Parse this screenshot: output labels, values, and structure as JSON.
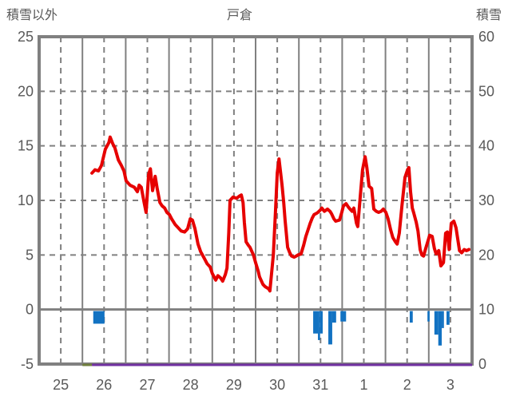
{
  "window": {
    "title_left": "積雪以外",
    "title_center": "戸倉",
    "title_right": "積雪"
  },
  "colors": {
    "frame_gray": "#808080",
    "grid_gray": "#808080",
    "text_gray": "#595959",
    "temperature_red": "#e60000",
    "bar_blue": "#1272c2",
    "snow_purple": "#7030a0",
    "pre_data_olive": "#6f7d3c",
    "background": "#ffffff"
  },
  "chart_data": {
    "type": "line",
    "title": "戸倉",
    "left_axis": {
      "label": "積雪以外",
      "min": -5,
      "max": 25,
      "ticks": [
        25,
        20,
        15,
        10,
        5,
        0,
        -5
      ]
    },
    "right_axis": {
      "label": "積雪",
      "min": 0,
      "max": 60,
      "ticks": [
        60,
        50,
        40,
        30,
        20,
        10,
        0
      ]
    },
    "x_axis": {
      "tick_labels": [
        "25",
        "26",
        "27",
        "28",
        "29",
        "30",
        "31",
        "1",
        "2",
        "3"
      ],
      "num_days": 10,
      "grid": "solid line per day boundary, dashed line per half day"
    },
    "grid": {
      "h_dashed_levels": [
        20,
        15,
        10,
        5
      ],
      "h_solid_zero_level": 0
    },
    "series": [
      {
        "name": "temperature-line",
        "kind": "line",
        "axis": "left",
        "color": "#e60000",
        "width": 4,
        "points": [
          [
            1.22,
            12.5
          ],
          [
            1.29,
            12.8
          ],
          [
            1.37,
            12.7
          ],
          [
            1.44,
            13.2
          ],
          [
            1.53,
            14.7
          ],
          [
            1.61,
            15.3
          ],
          [
            1.64,
            15.8
          ],
          [
            1.7,
            15.2
          ],
          [
            1.75,
            14.8
          ],
          [
            1.83,
            13.7
          ],
          [
            1.9,
            13.2
          ],
          [
            1.96,
            12.7
          ],
          [
            2.01,
            11.8
          ],
          [
            2.1,
            11.4
          ],
          [
            2.2,
            11.2
          ],
          [
            2.27,
            10.8
          ],
          [
            2.31,
            11.4
          ],
          [
            2.36,
            11.2
          ],
          [
            2.42,
            9.9
          ],
          [
            2.47,
            8.9
          ],
          [
            2.53,
            12.4
          ],
          [
            2.57,
            12.9
          ],
          [
            2.62,
            10.9
          ],
          [
            2.68,
            12.2
          ],
          [
            2.73,
            11.0
          ],
          [
            2.79,
            9.8
          ],
          [
            2.84,
            9.5
          ],
          [
            2.9,
            9.3
          ],
          [
            2.95,
            8.9
          ],
          [
            3.01,
            8.7
          ],
          [
            3.06,
            8.3
          ],
          [
            3.14,
            7.8
          ],
          [
            3.21,
            7.5
          ],
          [
            3.28,
            7.2
          ],
          [
            3.36,
            7.1
          ],
          [
            3.43,
            7.4
          ],
          [
            3.49,
            8.3
          ],
          [
            3.54,
            8.2
          ],
          [
            3.6,
            7.4
          ],
          [
            3.67,
            6.0
          ],
          [
            3.73,
            5.3
          ],
          [
            3.8,
            4.8
          ],
          [
            3.88,
            4.2
          ],
          [
            3.95,
            3.9
          ],
          [
            4.0,
            3.3
          ],
          [
            4.08,
            2.7
          ],
          [
            4.13,
            3.1
          ],
          [
            4.19,
            2.9
          ],
          [
            4.24,
            2.6
          ],
          [
            4.3,
            3.2
          ],
          [
            4.34,
            3.8
          ],
          [
            4.38,
            7.0
          ],
          [
            4.41,
            10.0
          ],
          [
            4.48,
            10.3
          ],
          [
            4.56,
            10.2
          ],
          [
            4.63,
            10.4
          ],
          [
            4.67,
            10.5
          ],
          [
            4.71,
            9.8
          ],
          [
            4.74,
            8.0
          ],
          [
            4.78,
            6.2
          ],
          [
            4.83,
            5.9
          ],
          [
            4.87,
            5.7
          ],
          [
            4.95,
            5.0
          ],
          [
            5.0,
            4.3
          ],
          [
            5.06,
            3.5
          ],
          [
            5.09,
            3.0
          ],
          [
            5.17,
            2.3
          ],
          [
            5.22,
            2.1
          ],
          [
            5.3,
            1.9
          ],
          [
            5.33,
            1.7
          ],
          [
            5.41,
            5.0
          ],
          [
            5.46,
            9.0
          ],
          [
            5.5,
            12.5
          ],
          [
            5.54,
            13.8
          ],
          [
            5.57,
            12.8
          ],
          [
            5.61,
            11.4
          ],
          [
            5.65,
            9.8
          ],
          [
            5.68,
            8.2
          ],
          [
            5.74,
            5.7
          ],
          [
            5.79,
            5.2
          ],
          [
            5.83,
            4.9
          ],
          [
            5.89,
            4.8
          ],
          [
            5.94,
            4.9
          ],
          [
            5.98,
            5.0
          ],
          [
            6.05,
            5.1
          ],
          [
            6.11,
            5.9
          ],
          [
            6.16,
            6.7
          ],
          [
            6.22,
            7.4
          ],
          [
            6.26,
            7.9
          ],
          [
            6.31,
            8.4
          ],
          [
            6.35,
            8.7
          ],
          [
            6.4,
            8.8
          ],
          [
            6.44,
            8.9
          ],
          [
            6.49,
            9.1
          ],
          [
            6.53,
            9.3
          ],
          [
            6.59,
            9.0
          ],
          [
            6.66,
            9.2
          ],
          [
            6.72,
            9.0
          ],
          [
            6.75,
            8.8
          ],
          [
            6.81,
            8.3
          ],
          [
            6.85,
            8.1
          ],
          [
            6.94,
            8.2
          ],
          [
            6.99,
            8.9
          ],
          [
            7.03,
            9.5
          ],
          [
            7.09,
            9.7
          ],
          [
            7.14,
            9.4
          ],
          [
            7.18,
            9.2
          ],
          [
            7.23,
            9.0
          ],
          [
            7.27,
            9.3
          ],
          [
            7.33,
            7.9
          ],
          [
            7.36,
            7.6
          ],
          [
            7.42,
            10.5
          ],
          [
            7.47,
            12.8
          ],
          [
            7.53,
            14.0
          ],
          [
            7.57,
            13.0
          ],
          [
            7.62,
            11.3
          ],
          [
            7.68,
            11.1
          ],
          [
            7.73,
            9.2
          ],
          [
            7.79,
            9.0
          ],
          [
            7.84,
            8.9
          ],
          [
            7.9,
            9.0
          ],
          [
            7.95,
            9.2
          ],
          [
            8.01,
            8.9
          ],
          [
            8.06,
            8.3
          ],
          [
            8.12,
            7.3
          ],
          [
            8.17,
            6.6
          ],
          [
            8.23,
            6.2
          ],
          [
            8.27,
            6.0
          ],
          [
            8.32,
            7.0
          ],
          [
            8.38,
            9.5
          ],
          [
            8.45,
            12.1
          ],
          [
            8.51,
            12.8
          ],
          [
            8.54,
            13.0
          ],
          [
            8.58,
            10.8
          ],
          [
            8.62,
            9.3
          ],
          [
            8.65,
            8.9
          ],
          [
            8.71,
            8.0
          ],
          [
            8.75,
            7.2
          ],
          [
            8.8,
            5.5
          ],
          [
            8.84,
            5.0
          ],
          [
            8.88,
            4.9
          ],
          [
            8.93,
            5.6
          ],
          [
            8.99,
            6.4
          ],
          [
            9.02,
            6.8
          ],
          [
            9.08,
            6.7
          ],
          [
            9.13,
            5.6
          ],
          [
            9.17,
            5.1
          ],
          [
            9.23,
            5.4
          ],
          [
            9.28,
            4.0
          ],
          [
            9.34,
            4.3
          ],
          [
            9.39,
            7.0
          ],
          [
            9.43,
            7.1
          ],
          [
            9.47,
            5.5
          ],
          [
            9.52,
            7.9
          ],
          [
            9.58,
            8.1
          ],
          [
            9.63,
            7.5
          ],
          [
            9.71,
            5.4
          ],
          [
            9.76,
            5.2
          ],
          [
            9.82,
            5.5
          ],
          [
            9.87,
            5.4
          ],
          [
            9.93,
            5.5
          ]
        ]
      },
      {
        "name": "precipitation-bars",
        "kind": "bar",
        "axis": "left",
        "color": "#1272c2",
        "bars": [
          [
            1.25,
            1.51,
            -1.3
          ],
          [
            6.33,
            6.44,
            -2.2
          ],
          [
            6.44,
            6.49,
            -2.8
          ],
          [
            6.49,
            6.55,
            -2.2
          ],
          [
            6.68,
            6.77,
            -3.2
          ],
          [
            6.77,
            6.86,
            -1.2
          ],
          [
            6.96,
            7.09,
            -1.1
          ],
          [
            8.56,
            8.63,
            -1.2
          ],
          [
            8.97,
            9.02,
            -1.1
          ],
          [
            9.13,
            9.22,
            -2.3
          ],
          [
            9.22,
            9.3,
            -3.3
          ],
          [
            9.3,
            9.35,
            -1.7
          ],
          [
            9.41,
            9.48,
            -1.4
          ]
        ]
      },
      {
        "name": "pre-data-segment",
        "kind": "line",
        "axis": "right",
        "color": "#6f7d3c",
        "width": 3,
        "points": [
          [
            1.0,
            0
          ],
          [
            1.22,
            0
          ]
        ]
      },
      {
        "name": "snow-depth-line",
        "kind": "line",
        "axis": "right",
        "color": "#7030a0",
        "width": 3,
        "points": [
          [
            1.22,
            0
          ],
          [
            10.0,
            0
          ]
        ]
      }
    ]
  }
}
